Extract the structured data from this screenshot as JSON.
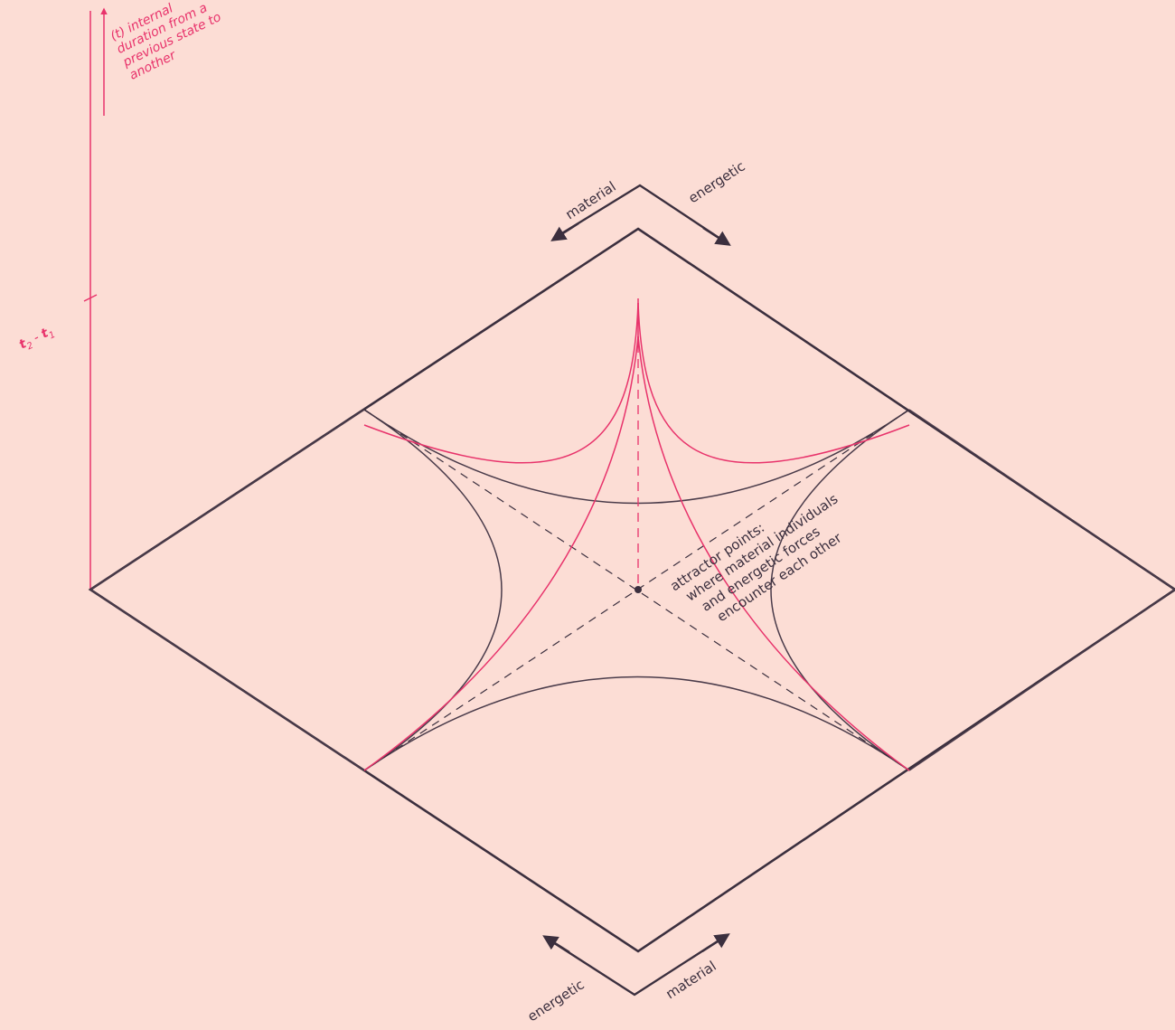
{
  "time_axis": {
    "caption_lines": [
      "(t) internal",
      "duration from a",
      "previous state to",
      "another"
    ],
    "tick_label_t2": "t",
    "tick_label_t2_sub": "2",
    "tick_label_sep": " - ",
    "tick_label_t1": "t",
    "tick_label_t1_sub": "1"
  },
  "top_arrows": {
    "left": "material",
    "right": "energetic"
  },
  "bottom_arrows": {
    "left": "energetic",
    "right": "material"
  },
  "annotation": {
    "lines": [
      "attractor points:",
      "where material individuals",
      "and energetic forces",
      "encounter each other"
    ]
  },
  "colors": {
    "background": "#fcddd5",
    "ink": "#3b2f3e",
    "accent": "#e8336b"
  }
}
